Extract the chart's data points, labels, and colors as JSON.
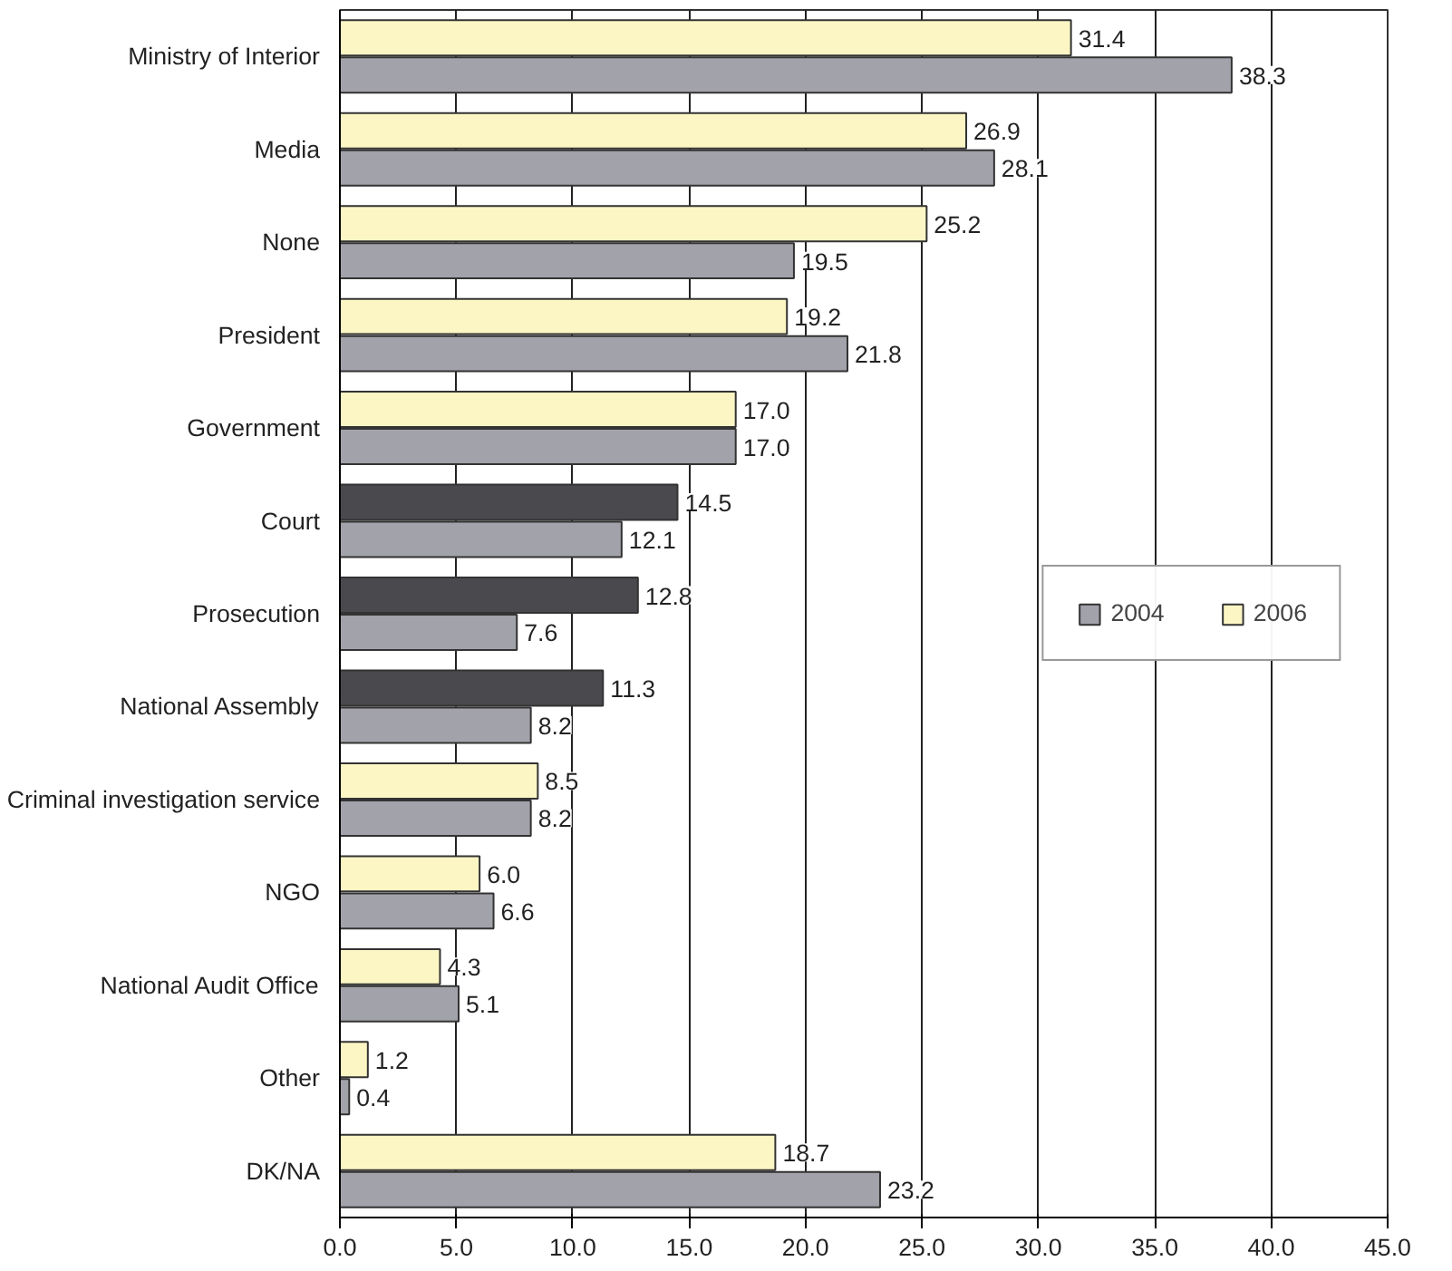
{
  "chart_data": {
    "type": "bar",
    "orientation": "horizontal",
    "categories": [
      "Ministry of Interior",
      "Media",
      "None",
      "President",
      "Government",
      "Court",
      "Prosecution",
      "National Assembly",
      "Criminal investigation service",
      "NGO",
      "National Audit Office",
      "Other",
      "DK/NA"
    ],
    "series": [
      {
        "name": "2006",
        "color": "#fcf6c4",
        "colors": [
          "#fcf6c4",
          "#fcf6c4",
          "#fcf6c4",
          "#fcf6c4",
          "#fcf6c4",
          "#4a4a4e",
          "#4a4a4e",
          "#4a4a4e",
          "#fcf6c4",
          "#fcf6c4",
          "#fcf6c4",
          "#fcf6c4",
          "#fcf6c4"
        ],
        "values": [
          31.4,
          26.9,
          25.2,
          19.2,
          17.0,
          14.5,
          12.8,
          11.3,
          8.5,
          6.0,
          4.3,
          1.2,
          18.7
        ],
        "value_labels": [
          "31.4",
          "26.9",
          "25.2",
          "19.2",
          "17.0",
          "14.5",
          "12.8",
          "11.3",
          "8.5",
          "6.0",
          "4.3",
          "1.2",
          "18.7"
        ]
      },
      {
        "name": "2004",
        "color": "#a2a2aa",
        "values": [
          38.3,
          28.1,
          19.5,
          21.8,
          17.0,
          12.1,
          7.6,
          8.2,
          8.2,
          6.6,
          5.1,
          0.4,
          23.2
        ],
        "value_labels": [
          "38.3",
          "28.1",
          "19.5",
          "21.8",
          "17.0",
          "12.1",
          "7.6",
          "8.2",
          "8.2",
          "6.6",
          "5.1",
          "0.4",
          "23.2"
        ]
      }
    ],
    "xlim": [
      0,
      45
    ],
    "xticks": [
      {
        "value": 0,
        "label": "0.0"
      },
      {
        "value": 5,
        "label": "5.0"
      },
      {
        "value": 10,
        "label": "10.0"
      },
      {
        "value": 15,
        "label": "15.0"
      },
      {
        "value": 20,
        "label": "20.0"
      },
      {
        "value": 25,
        "label": "25.0"
      },
      {
        "value": 30,
        "label": "30.0"
      },
      {
        "value": 35,
        "label": "35.0"
      },
      {
        "value": 40,
        "label": "40.0"
      },
      {
        "value": 45,
        "label": "45.0"
      }
    ],
    "grid": "x",
    "legend": "right"
  }
}
